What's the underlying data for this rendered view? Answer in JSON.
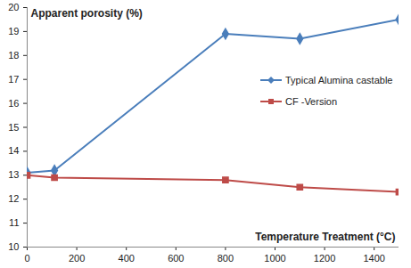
{
  "chart_data": {
    "type": "line",
    "y_label": "Apparent porosity (%)",
    "x_label": "Temperature Treatment (°C)",
    "x": [
      0,
      110,
      800,
      1100,
      1500
    ],
    "series": [
      {
        "name": "Typical Alumina castable",
        "color": "#4a7ebb",
        "marker": "diamond",
        "values": [
          13.1,
          13.2,
          18.9,
          18.7,
          19.5
        ]
      },
      {
        "name": "CF -Version",
        "color": "#be4b48",
        "marker": "square",
        "values": [
          13.0,
          12.9,
          12.8,
          12.5,
          12.3
        ]
      }
    ],
    "xlim": [
      0,
      1500
    ],
    "xticks": [
      0,
      200,
      400,
      600,
      800,
      1000,
      1200,
      1400
    ],
    "ylim": [
      10,
      20
    ],
    "yticks": [
      10,
      11,
      12,
      13,
      14,
      15,
      16,
      17,
      18,
      19,
      20
    ],
    "grid": false,
    "legend": "right"
  }
}
